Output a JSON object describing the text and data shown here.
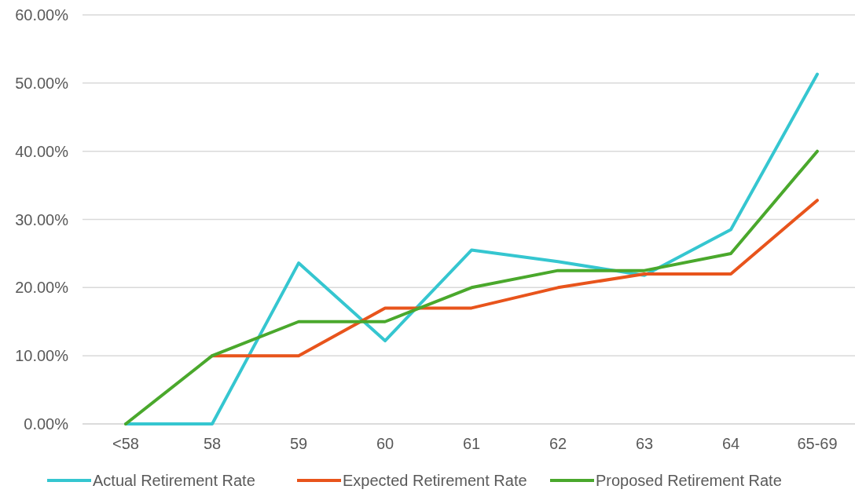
{
  "chart_data": {
    "type": "line",
    "categories": [
      "<58",
      "58",
      "59",
      "60",
      "61",
      "62",
      "63",
      "64",
      "65-69"
    ],
    "series": [
      {
        "name": "Actual Retirement Rate",
        "color": "#35c6d0",
        "values": [
          0,
          0,
          23.6,
          12.2,
          25.5,
          23.8,
          21.8,
          28.5,
          51.3
        ]
      },
      {
        "name": "Expected Retirement Rate",
        "color": "#e8541c",
        "values": [
          null,
          10,
          10,
          17,
          17,
          20,
          22,
          22,
          32.8
        ]
      },
      {
        "name": "Proposed Retirement Rate",
        "color": "#4aa82c",
        "values": [
          0,
          10,
          15,
          15,
          20,
          22.5,
          22.5,
          25,
          40
        ]
      }
    ],
    "ylim": [
      0,
      60
    ],
    "yticks": [
      {
        "value": 0,
        "label": "0.00%"
      },
      {
        "value": 10,
        "label": "10.00%"
      },
      {
        "value": 20,
        "label": "20.00%"
      },
      {
        "value": 30,
        "label": "30.00%"
      },
      {
        "value": 40,
        "label": "40.00%"
      },
      {
        "value": 50,
        "label": "50.00%"
      },
      {
        "value": 60,
        "label": "60.00%"
      }
    ],
    "grid": "y",
    "legend": "bottom",
    "marker": "none",
    "line_style": "solid"
  }
}
